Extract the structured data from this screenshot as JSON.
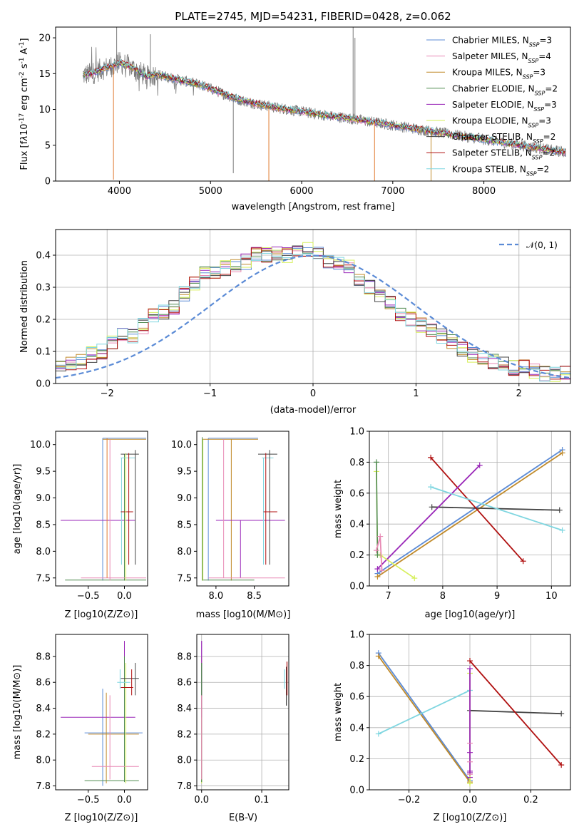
{
  "colors": {
    "Chabrier MILES": "#5b8bd6",
    "Salpeter MILES": "#e88ab5",
    "Kroupa MILES": "#c08a2a",
    "Chabrier ELODIE": "#4f8a4f",
    "Salpeter ELODIE": "#9a27b8",
    "Kroupa ELODIE": "#d6ef5a",
    "Chabrier STELIB": "#444444",
    "Salpeter STELIB": "#b01010",
    "Kroupa STELIB": "#7fd6e0",
    "orange": "#e07a30",
    "spectrum": "#7a7a7a",
    "normal": "#5b8bd6"
  },
  "chart_data": [
    {
      "id": "spectrum",
      "type": "line",
      "title": "PLATE=2745, MJD=54231, FIBERID=0428, z=0.062",
      "xlabel": "wavelength [Angstrom, rest frame]",
      "ylabel_parts": [
        "Flux [f",
        "λ",
        "10",
        "-17",
        " erg cm",
        "-2",
        " s",
        "-1",
        " A",
        "-1",
        "]"
      ],
      "xlim": [
        3300,
        8950
      ],
      "ylim": [
        0,
        21.5
      ],
      "xticks": [
        4000,
        5000,
        6000,
        7000,
        8000
      ],
      "yticks": [
        0,
        5,
        10,
        15,
        20
      ],
      "legend_position": "upper right",
      "legend": [
        {
          "label": "Chabrier MILES, N",
          "sub": "SSP",
          "suffix": "=3"
        },
        {
          "label": "Salpeter MILES, N",
          "sub": "SSP",
          "suffix": "=4"
        },
        {
          "label": "Kroupa MILES, N",
          "sub": "SSP",
          "suffix": "=3"
        },
        {
          "label": "Chabrier ELODIE, N",
          "sub": "SSP",
          "suffix": "=2"
        },
        {
          "label": "Salpeter ELODIE, N",
          "sub": "SSP",
          "suffix": "=3"
        },
        {
          "label": "Kroupa ELODIE, N",
          "sub": "SSP",
          "suffix": "=3"
        },
        {
          "label": "Chabrier STELIB, N",
          "sub": "SSP",
          "suffix": "=2"
        },
        {
          "label": "Salpeter STELIB, N",
          "sub": "SSP",
          "suffix": "=2"
        },
        {
          "label": "Kroupa STELIB, N",
          "sub": "SSP",
          "suffix": "=2"
        }
      ],
      "continuum_x": [
        3600,
        3700,
        3800,
        3900,
        4000,
        4100,
        4200,
        4300,
        4400,
        4500,
        4700,
        4900,
        5100,
        5300,
        5500,
        5700,
        5900,
        6100,
        6300,
        6500,
        6700,
        6900,
        7100,
        7300,
        7500,
        7700,
        7900,
        8100,
        8300,
        8500,
        8700,
        8900
      ],
      "continuum_y": [
        14.8,
        15.0,
        15.6,
        16.0,
        16.5,
        16.1,
        15.4,
        14.6,
        14.9,
        14.6,
        14.0,
        13.4,
        12.4,
        11.4,
        10.8,
        10.3,
        9.9,
        9.5,
        9.1,
        8.8,
        8.4,
        8.0,
        7.6,
        7.2,
        6.8,
        6.4,
        6.0,
        5.6,
        5.2,
        4.8,
        4.4,
        4.0
      ],
      "spikes": [
        {
          "x": 3935,
          "y": 0.2
        },
        {
          "x": 3970,
          "y": 21.5
        },
        {
          "x": 4340,
          "y": 20.5
        },
        {
          "x": 5250,
          "y": 1.1
        },
        {
          "x": 5640,
          "y": 0
        },
        {
          "x": 6565,
          "y": 21.5
        },
        {
          "x": 6585,
          "y": 20.0
        },
        {
          "x": 6800,
          "y": 0
        },
        {
          "x": 7420,
          "y": 0
        }
      ]
    },
    {
      "id": "residuals",
      "type": "line",
      "xlabel": "(data-model)/error",
      "ylabel": "Normed distribution",
      "xlim": [
        -2.5,
        2.5
      ],
      "ylim": [
        0,
        0.48
      ],
      "xticks": [
        -2,
        -1,
        0,
        1,
        2
      ],
      "yticks": [
        0.0,
        0.1,
        0.2,
        0.3,
        0.4
      ],
      "legend_position": "upper right",
      "normal_label": "𝒩(0, 1)",
      "bin_width": 0.1,
      "histogram_centers": [
        -2.45,
        -2.35,
        -2.25,
        -2.15,
        -2.05,
        -1.95,
        -1.85,
        -1.75,
        -1.65,
        -1.55,
        -1.45,
        -1.35,
        -1.25,
        -1.15,
        -1.05,
        -0.95,
        -0.85,
        -0.75,
        -0.65,
        -0.55,
        -0.45,
        -0.35,
        -0.25,
        -0.15,
        -0.05,
        0.05,
        0.15,
        0.25,
        0.35,
        0.45,
        0.55,
        0.65,
        0.75,
        0.85,
        0.95,
        1.05,
        1.15,
        1.25,
        1.35,
        1.45,
        1.55,
        1.65,
        1.75,
        1.85,
        1.95,
        2.05,
        2.15,
        2.25,
        2.35,
        2.45
      ],
      "histogram_base": [
        0.05,
        0.06,
        0.07,
        0.09,
        0.1,
        0.13,
        0.15,
        0.15,
        0.18,
        0.21,
        0.22,
        0.24,
        0.28,
        0.31,
        0.34,
        0.35,
        0.36,
        0.37,
        0.38,
        0.4,
        0.4,
        0.41,
        0.4,
        0.41,
        0.42,
        0.4,
        0.38,
        0.37,
        0.36,
        0.33,
        0.3,
        0.27,
        0.25,
        0.22,
        0.2,
        0.18,
        0.17,
        0.15,
        0.13,
        0.11,
        0.09,
        0.08,
        0.07,
        0.06,
        0.05,
        0.05,
        0.04,
        0.03,
        0.03,
        0.03
      ]
    },
    {
      "id": "age-vs-Z",
      "type": "scatter",
      "xlabel": "Z [log10(Z/Z⊙)]",
      "ylabel": "age  [log10(age/yr)]",
      "xlim": [
        -0.95,
        0.32
      ],
      "ylim": [
        7.35,
        10.25
      ],
      "xticks": [
        -0.5,
        0.0
      ],
      "yticks": [
        7.5,
        8.0,
        8.5,
        9.0,
        9.5,
        10.0
      ]
    },
    {
      "id": "age-vs-mass",
      "type": "scatter",
      "xlabel": "mass [log10(M/M⊙)]",
      "xlim": [
        7.75,
        8.95
      ],
      "ylim": [
        7.35,
        10.25
      ],
      "xticks": [
        8.0,
        8.5
      ],
      "yticks": [
        7.5,
        8.0,
        8.5,
        9.0,
        9.5,
        10.0
      ]
    },
    {
      "id": "massweight-vs-age",
      "type": "line",
      "xlabel": "age  [log10(age/yr)]",
      "ylabel": "mass weight",
      "xlim": [
        6.65,
        10.35
      ],
      "ylim": [
        0,
        1
      ],
      "xticks": [
        7,
        8,
        9,
        10
      ],
      "yticks": [
        0.0,
        0.2,
        0.4,
        0.6,
        0.8,
        1.0
      ],
      "series": [
        {
          "name": "Chabrier MILES",
          "x": [
            6.8,
            10.2
          ],
          "y": [
            0.08,
            0.88
          ]
        },
        {
          "name": "Kroupa MILES",
          "x": [
            6.8,
            10.2
          ],
          "y": [
            0.06,
            0.86
          ]
        },
        {
          "name": "Chabrier STELIB",
          "x": [
            7.8,
            10.15
          ],
          "y": [
            0.51,
            0.49
          ]
        },
        {
          "name": "Salpeter STELIB",
          "x": [
            7.78,
            9.48
          ],
          "y": [
            0.83,
            0.16
          ]
        },
        {
          "name": "Salpeter ELODIE",
          "x": [
            6.8,
            8.68
          ],
          "y": [
            0.11,
            0.78
          ]
        },
        {
          "name": "Kroupa STELIB",
          "x": [
            7.78,
            10.2
          ],
          "y": [
            0.64,
            0.36
          ]
        },
        {
          "name": "Kroupa ELODIE",
          "x": [
            6.78,
            6.8,
            6.85,
            7.48
          ],
          "y": [
            0.74,
            0.2,
            0.2,
            0.05
          ]
        },
        {
          "name": "Chabrier ELODIE",
          "x": [
            6.78,
            6.8
          ],
          "y": [
            0.8,
            0.2
          ]
        },
        {
          "name": "Salpeter MILES",
          "x": [
            6.78,
            6.85,
            6.88
          ],
          "y": [
            0.23,
            0.32,
            0.1
          ]
        }
      ]
    },
    {
      "id": "mass-vs-Z",
      "type": "scatter",
      "xlabel": "Z [log10(Z/Z⊙)]",
      "ylabel": "mass [log10(M/M⊙)]",
      "xlim": [
        -0.95,
        0.32
      ],
      "ylim": [
        7.77,
        8.97
      ],
      "xticks": [
        -0.5,
        0.0
      ],
      "yticks": [
        7.8,
        8.0,
        8.2,
        8.4,
        8.6,
        8.8
      ]
    },
    {
      "id": "mass-vs-EBV",
      "type": "scatter",
      "xlabel": "E(B-V)",
      "xlim": [
        -0.008,
        0.145
      ],
      "ylim": [
        7.77,
        8.97
      ],
      "xticks": [
        0.0,
        0.1
      ],
      "yticks": [
        7.8,
        8.0,
        8.2,
        8.4,
        8.6,
        8.8
      ]
    },
    {
      "id": "massweight-vs-Z",
      "type": "line",
      "xlabel": "Z [log10(Z/Z⊙)]",
      "ylabel": "mass weight",
      "xlim": [
        -0.33,
        0.33
      ],
      "ylim": [
        0,
        1
      ],
      "xticks": [
        -0.2,
        0.0,
        0.2
      ],
      "yticks": [
        0.0,
        0.2,
        0.4,
        0.6,
        0.8,
        1.0
      ],
      "series": [
        {
          "name": "Chabrier MILES",
          "x": [
            -0.3,
            0.0
          ],
          "y": [
            0.88,
            0.06
          ]
        },
        {
          "name": "Kroupa MILES",
          "x": [
            -0.3,
            0.0
          ],
          "y": [
            0.86,
            0.05
          ]
        },
        {
          "name": "Chabrier STELIB",
          "x": [
            0.0,
            0.3
          ],
          "y": [
            0.51,
            0.49
          ]
        },
        {
          "name": "Salpeter STELIB",
          "x": [
            0.0,
            0.3
          ],
          "y": [
            0.83,
            0.16
          ]
        },
        {
          "name": "Kroupa STELIB",
          "x": [
            -0.3,
            0.0
          ],
          "y": [
            0.36,
            0.64
          ]
        },
        {
          "name": "Kroupa ELODIE",
          "x": [
            0.0,
            0.0
          ],
          "y": [
            0.75,
            0.04
          ]
        },
        {
          "name": "Salpeter ELODIE",
          "x": [
            0.0,
            0.0
          ],
          "y": [
            0.78,
            0.11
          ]
        }
      ]
    }
  ]
}
